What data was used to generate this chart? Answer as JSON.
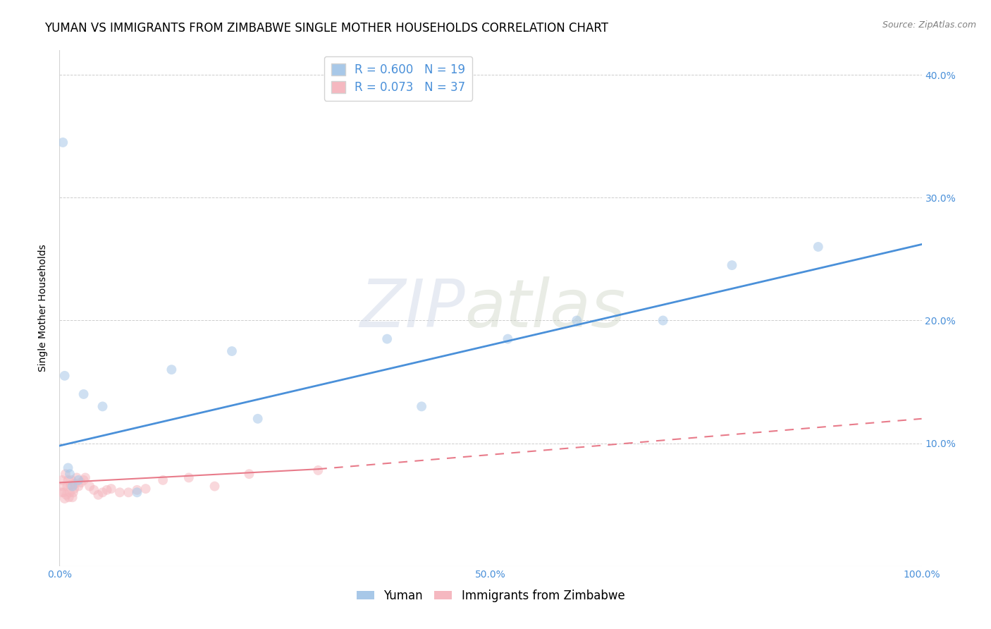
{
  "title": "YUMAN VS IMMIGRANTS FROM ZIMBABWE SINGLE MOTHER HOUSEHOLDS CORRELATION CHART",
  "source": "Source: ZipAtlas.com",
  "ylabel": "Single Mother Households",
  "xlim": [
    0,
    1.0
  ],
  "ylim": [
    0,
    0.42
  ],
  "xticks": [
    0.0,
    0.1,
    0.2,
    0.3,
    0.4,
    0.5,
    0.6,
    0.7,
    0.8,
    0.9,
    1.0
  ],
  "xticklabels": [
    "0.0%",
    "",
    "",
    "",
    "",
    "",
    "",
    "",
    "",
    "",
    "100.0%"
  ],
  "yticks_right": [
    0.0,
    0.1,
    0.2,
    0.3,
    0.4
  ],
  "yticklabels_right": [
    "",
    "10.0%",
    "20.0%",
    "30.0%",
    "40.0%"
  ],
  "legend_blue_r": "R = 0.600",
  "legend_blue_n": "N = 19",
  "legend_pink_r": "R = 0.073",
  "legend_pink_n": "N = 37",
  "blue_color": "#a8c8e8",
  "blue_line_color": "#4a90d9",
  "pink_color": "#f5b8c0",
  "pink_line_color": "#e87b8a",
  "watermark_zip": "ZIP",
  "watermark_atlas": "atlas",
  "background_color": "#ffffff",
  "grid_color": "#c8c8c8",
  "yuman_x": [
    0.004,
    0.006,
    0.01,
    0.012,
    0.015,
    0.022,
    0.028,
    0.05,
    0.09,
    0.13,
    0.2,
    0.23,
    0.38,
    0.42,
    0.52,
    0.6,
    0.7,
    0.78,
    0.88
  ],
  "yuman_y": [
    0.345,
    0.155,
    0.08,
    0.075,
    0.065,
    0.07,
    0.14,
    0.13,
    0.06,
    0.16,
    0.175,
    0.12,
    0.185,
    0.13,
    0.185,
    0.2,
    0.2,
    0.245,
    0.26
  ],
  "zimbabwe_x": [
    0.002,
    0.003,
    0.004,
    0.005,
    0.006,
    0.007,
    0.008,
    0.009,
    0.01,
    0.011,
    0.012,
    0.013,
    0.014,
    0.015,
    0.016,
    0.017,
    0.018,
    0.02,
    0.022,
    0.025,
    0.028,
    0.03,
    0.035,
    0.04,
    0.045,
    0.05,
    0.055,
    0.06,
    0.07,
    0.08,
    0.09,
    0.1,
    0.12,
    0.15,
    0.18,
    0.22,
    0.3
  ],
  "zimbabwe_y": [
    0.06,
    0.07,
    0.065,
    0.06,
    0.055,
    0.075,
    0.058,
    0.065,
    0.07,
    0.056,
    0.06,
    0.066,
    0.07,
    0.056,
    0.06,
    0.063,
    0.067,
    0.072,
    0.065,
    0.068,
    0.07,
    0.072,
    0.065,
    0.062,
    0.058,
    0.06,
    0.062,
    0.063,
    0.06,
    0.06,
    0.062,
    0.063,
    0.07,
    0.072,
    0.065,
    0.075,
    0.078
  ],
  "marker_size": 100,
  "marker_alpha": 0.55,
  "title_fontsize": 12,
  "axis_label_fontsize": 10,
  "tick_fontsize": 10,
  "legend_fontsize": 12,
  "blue_line_start_y": 0.098,
  "blue_line_end_y": 0.262,
  "pink_line_start_y": 0.068,
  "pink_line_solid_end_x": 0.3,
  "pink_line_solid_end_y": 0.079,
  "pink_line_dashed_end_y": 0.12
}
